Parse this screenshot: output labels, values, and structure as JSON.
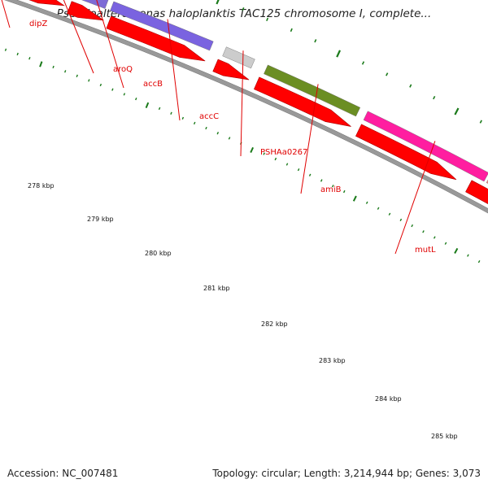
{
  "title": "Pseudoalteromonas haloplanktis TAC125 chromosome I, complete...",
  "footer": {
    "accession": "Accession: NC_007481",
    "topology": "Topology: circular; Length: 3,214,944 bp; Genes: 3,073"
  },
  "colors": {
    "label": "#e00000",
    "cds_arrow": "#ff0000",
    "tick": "#1a7a1a",
    "backbone": "#999999"
  },
  "genes": [
    {
      "name": "dipZ",
      "color": "#00ffff"
    },
    {
      "name": "",
      "color": "#c8b96e"
    },
    {
      "name": "aroQ",
      "color": "#4a7fb5"
    },
    {
      "name": "accB",
      "color": "#7d6bd6"
    },
    {
      "name": "accC",
      "color": "#7a63e0"
    },
    {
      "name": "PSHAa0267",
      "color": "#cccccc"
    },
    {
      "name": "amiB",
      "color": "#6b8e23"
    },
    {
      "name": "mutL",
      "color": "#ff1ea0"
    },
    {
      "name": "",
      "color": "#f08080"
    }
  ],
  "cds_arrows": 9,
  "ticks": [
    {
      "label": "278 kbp"
    },
    {
      "label": "279 kbp"
    },
    {
      "label": "280 kbp"
    },
    {
      "label": "281 kbp"
    },
    {
      "label": "282 kbp"
    },
    {
      "label": "283 kbp"
    },
    {
      "label": "284 kbp"
    },
    {
      "label": "285 kbp"
    }
  ]
}
